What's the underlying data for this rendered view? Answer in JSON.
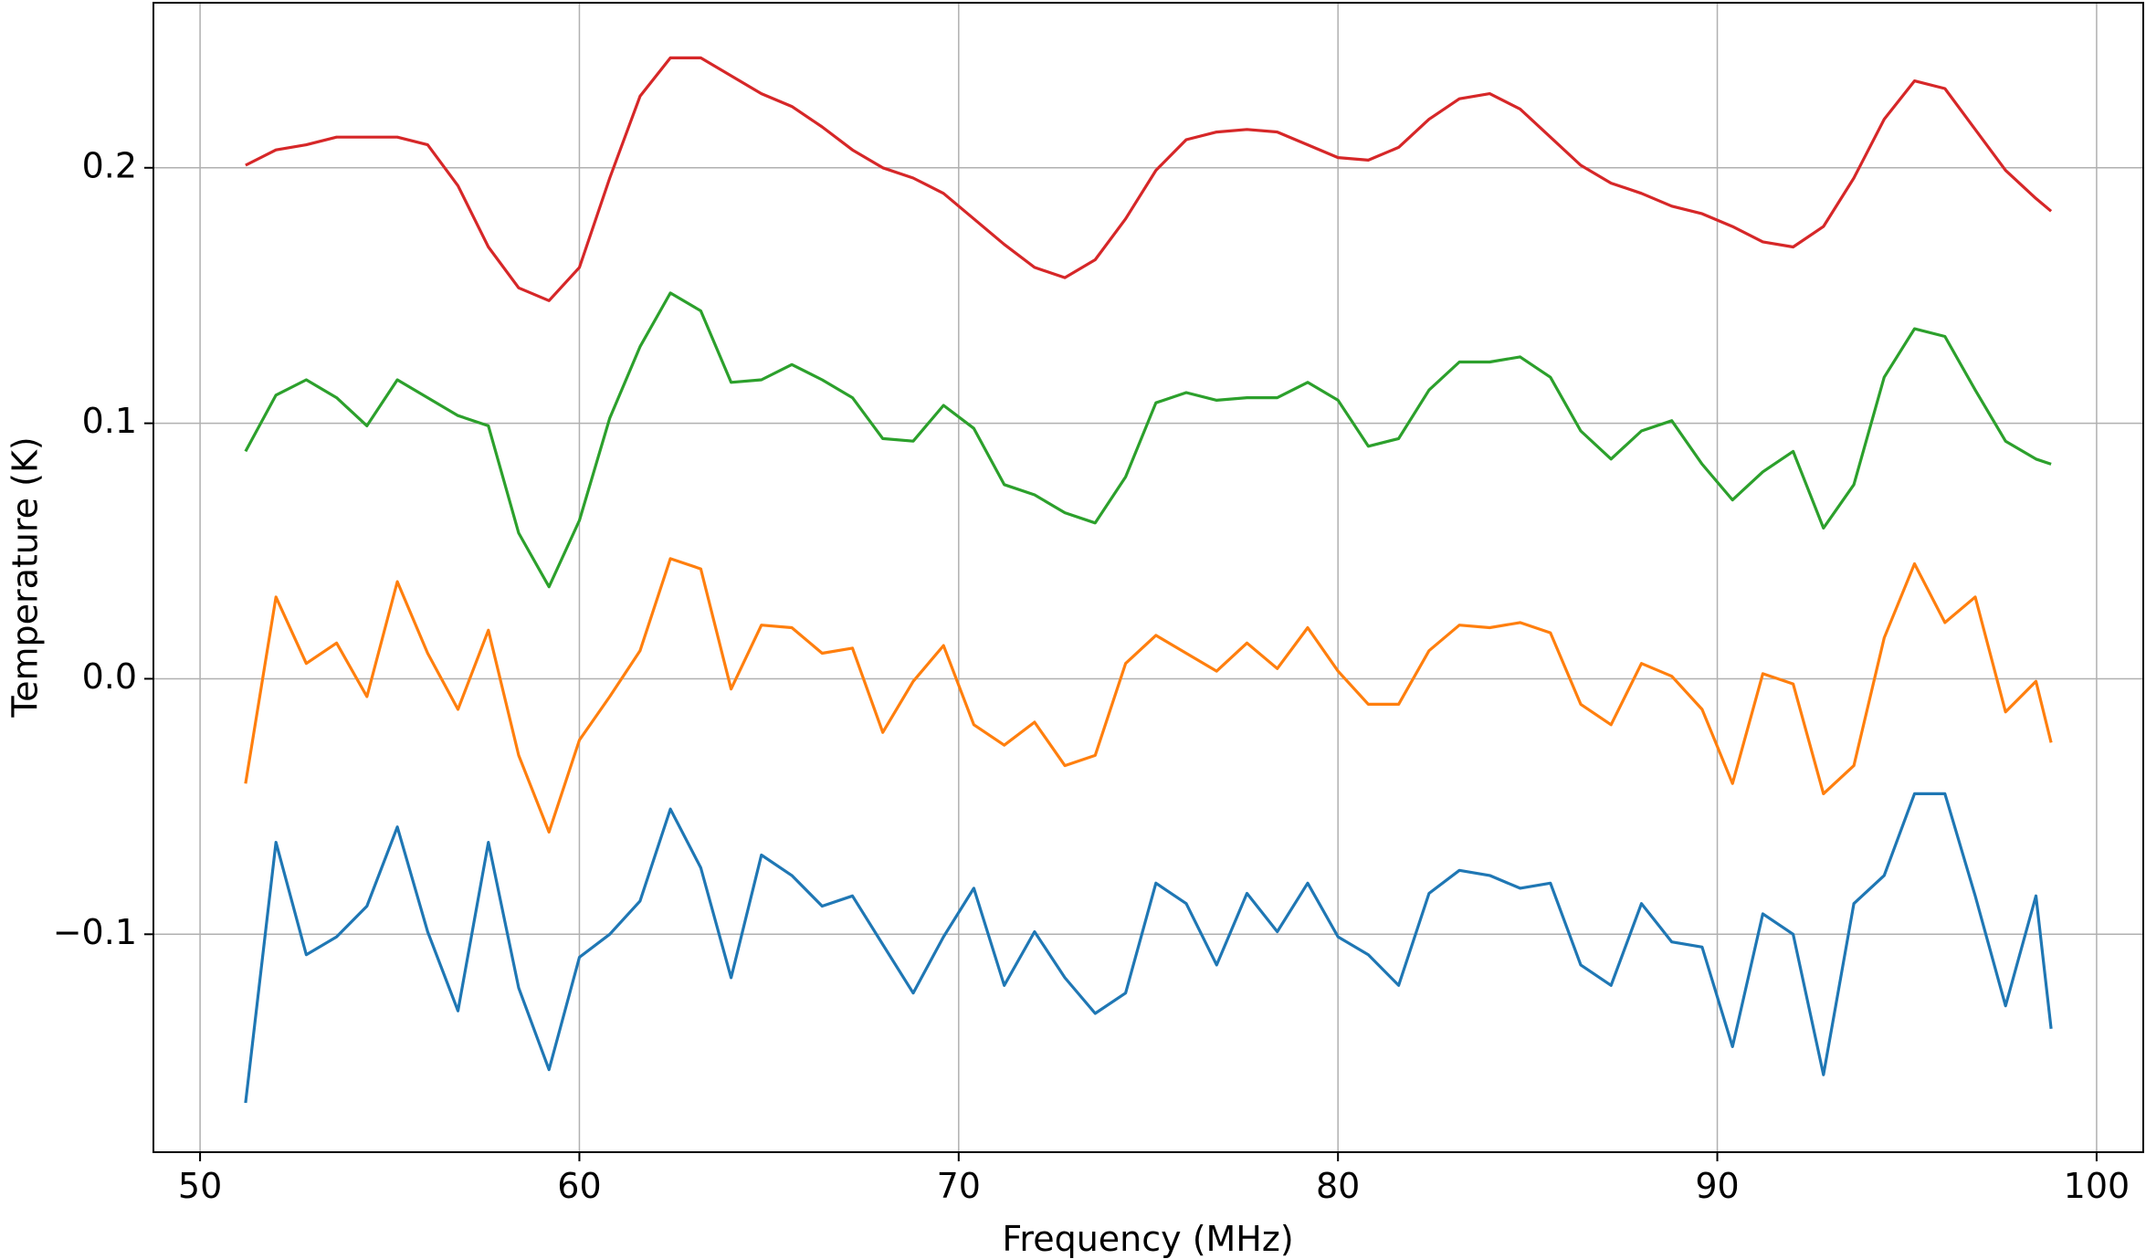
{
  "chart_data": {
    "type": "line",
    "xlabel": "Frequency (MHz)",
    "ylabel": "Temperature (K)",
    "x": [
      51.2,
      52.0,
      52.8,
      53.6,
      54.4,
      55.2,
      56.0,
      56.8,
      57.6,
      58.4,
      59.2,
      60.0,
      60.8,
      61.6,
      62.4,
      63.2,
      64.0,
      64.8,
      65.6,
      66.4,
      67.2,
      68.0,
      68.8,
      69.6,
      70.4,
      71.2,
      72.0,
      72.8,
      73.6,
      74.4,
      75.2,
      76.0,
      76.8,
      77.6,
      78.4,
      79.2,
      80.0,
      80.8,
      81.6,
      82.4,
      83.2,
      84.0,
      84.8,
      85.6,
      86.4,
      87.2,
      88.0,
      88.8,
      89.6,
      90.4,
      91.2,
      92.0,
      92.8,
      93.6,
      94.4,
      95.2,
      96.0,
      96.8,
      97.6,
      98.4,
      98.8
    ],
    "series": [
      {
        "color": "#1f77b4",
        "values": [
          -0.166,
          -0.064,
          -0.108,
          -0.101,
          -0.089,
          -0.058,
          -0.099,
          -0.13,
          -0.064,
          -0.121,
          -0.153,
          -0.109,
          -0.1,
          -0.087,
          -0.051,
          -0.074,
          -0.117,
          -0.069,
          -0.077,
          -0.089,
          -0.085,
          -0.104,
          -0.123,
          -0.101,
          -0.082,
          -0.12,
          -0.099,
          -0.117,
          -0.131,
          -0.123,
          -0.08,
          -0.088,
          -0.112,
          -0.084,
          -0.099,
          -0.08,
          -0.101,
          -0.108,
          -0.12,
          -0.084,
          -0.075,
          -0.077,
          -0.082,
          -0.08,
          -0.112,
          -0.12,
          -0.088,
          -0.103,
          -0.105,
          -0.144,
          -0.092,
          -0.1,
          -0.155,
          -0.088,
          -0.077,
          -0.045,
          -0.045,
          -0.085,
          -0.128,
          -0.085,
          -0.137
        ]
      },
      {
        "color": "#ff7f0e",
        "values": [
          -0.041,
          0.032,
          0.006,
          0.014,
          -0.007,
          0.038,
          0.01,
          -0.012,
          0.019,
          -0.03,
          -0.06,
          -0.024,
          -0.007,
          0.011,
          0.047,
          0.043,
          -0.004,
          0.021,
          0.02,
          0.01,
          0.012,
          -0.021,
          -0.001,
          0.013,
          -0.018,
          -0.026,
          -0.017,
          -0.034,
          -0.03,
          0.006,
          0.017,
          0.01,
          0.003,
          0.014,
          0.004,
          0.02,
          0.003,
          -0.01,
          -0.01,
          0.011,
          0.021,
          0.02,
          0.022,
          0.018,
          -0.01,
          -0.018,
          0.006,
          0.001,
          -0.012,
          -0.041,
          0.002,
          -0.002,
          -0.045,
          -0.034,
          0.016,
          0.045,
          0.022,
          0.032,
          -0.013,
          -0.001,
          -0.025
        ]
      },
      {
        "color": "#2ca02c",
        "values": [
          0.089,
          0.111,
          0.117,
          0.11,
          0.099,
          0.117,
          0.11,
          0.103,
          0.099,
          0.057,
          0.036,
          0.062,
          0.102,
          0.13,
          0.151,
          0.144,
          0.116,
          0.117,
          0.123,
          0.117,
          0.11,
          0.094,
          0.093,
          0.107,
          0.098,
          0.076,
          0.072,
          0.065,
          0.061,
          0.079,
          0.108,
          0.112,
          0.109,
          0.11,
          0.11,
          0.116,
          0.109,
          0.091,
          0.094,
          0.113,
          0.124,
          0.124,
          0.126,
          0.118,
          0.097,
          0.086,
          0.097,
          0.101,
          0.084,
          0.07,
          0.081,
          0.089,
          0.059,
          0.076,
          0.118,
          0.137,
          0.134,
          0.113,
          0.093,
          0.086,
          0.084
        ]
      },
      {
        "color": "#d62728",
        "values": [
          0.201,
          0.207,
          0.209,
          0.212,
          0.212,
          0.212,
          0.209,
          0.193,
          0.169,
          0.153,
          0.148,
          0.161,
          0.196,
          0.228,
          0.243,
          0.243,
          0.236,
          0.229,
          0.224,
          0.216,
          0.207,
          0.2,
          0.196,
          0.19,
          0.18,
          0.17,
          0.161,
          0.157,
          0.164,
          0.18,
          0.199,
          0.211,
          0.214,
          0.215,
          0.214,
          0.209,
          0.204,
          0.203,
          0.208,
          0.219,
          0.227,
          0.229,
          0.223,
          0.212,
          0.201,
          0.194,
          0.19,
          0.185,
          0.182,
          0.177,
          0.171,
          0.169,
          0.177,
          0.196,
          0.219,
          0.234,
          0.231,
          0.215,
          0.199,
          0.188,
          0.183
        ]
      }
    ],
    "xlim": [
      48.77,
      101.23
    ],
    "ylim": [
      -0.1853,
      0.2646
    ],
    "xticks": [
      50,
      60,
      70,
      80,
      90,
      100
    ],
    "yticks": [
      {
        "value": -0.1,
        "label": "−0.1"
      },
      {
        "value": 0,
        "label": "0.0"
      },
      0.1,
      0.2
    ],
    "grid": true
  }
}
